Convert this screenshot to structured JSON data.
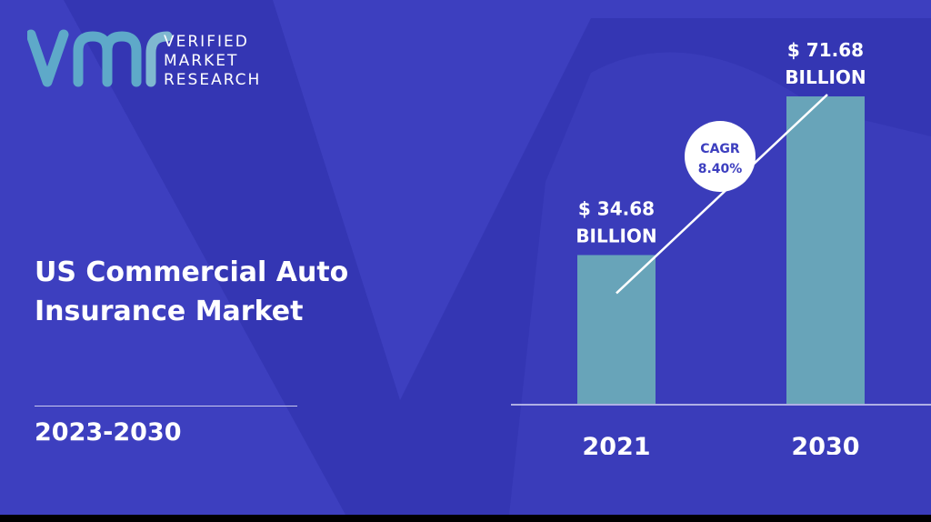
{
  "brand": {
    "name_lines": [
      "VERIFIED",
      "MARKET",
      "RESEARCH"
    ],
    "logo_colors": {
      "primary": "#5ea9c9",
      "secondary": "#7fb8d0"
    }
  },
  "report": {
    "title_lines": [
      "US Commercial Auto",
      "Insurance Market"
    ],
    "period": "2023-2030"
  },
  "colors": {
    "background": "#3d3fbf",
    "background_shape": "#3436b3",
    "bar": "#68a4b9",
    "text": "#ffffff",
    "cagr_text": "#3d3fbf"
  },
  "chart_data": {
    "type": "bar",
    "categories": [
      "2021",
      "2030"
    ],
    "values": [
      34.68,
      71.68
    ],
    "value_labels": [
      [
        "$ 34.68",
        "BILLION"
      ],
      [
        "$ 71.68",
        "BILLION"
      ]
    ],
    "ylim": [
      0,
      80
    ],
    "annotation": {
      "lines": [
        "CAGR",
        "8.40%"
      ],
      "value": 8.4
    },
    "title": "",
    "xlabel": "",
    "ylabel": "",
    "grid": false,
    "legend": "none"
  }
}
